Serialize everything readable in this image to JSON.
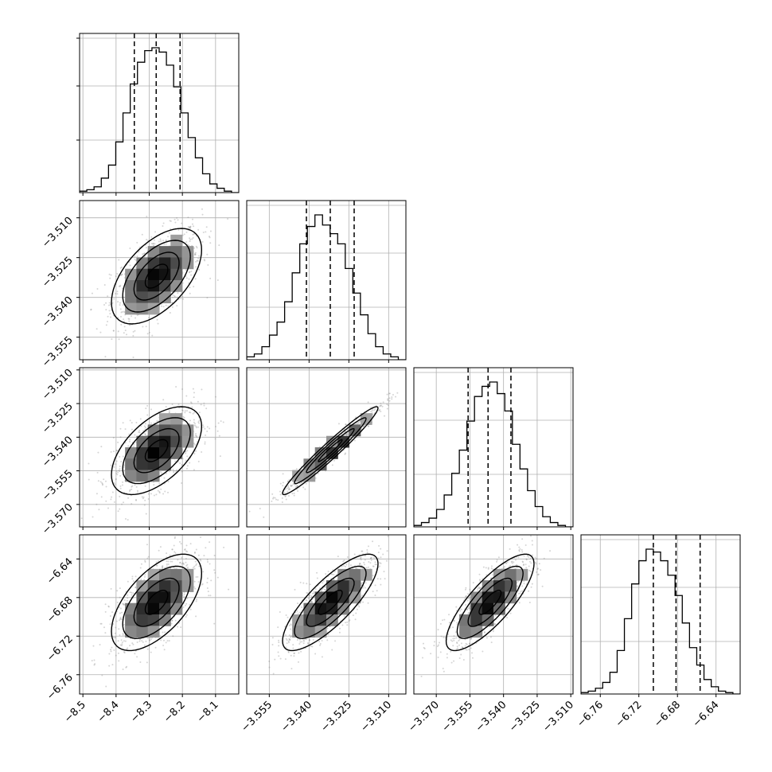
{
  "chart_data": {
    "type": "corner",
    "title": "",
    "variables": [
      {
        "ticks": [
          -8.5,
          -8.4,
          -8.3,
          -8.2,
          -8.1
        ],
        "tick_labels": [
          "−8.5",
          "−8.4",
          "−8.3",
          "−8.2",
          "−8.1"
        ],
        "range": [
          -8.51,
          -8.03
        ],
        "mean": -8.278,
        "sd": 0.068,
        "quantiles": [
          -8.345,
          -8.279,
          -8.207
        ],
        "hist": [
          1,
          2,
          4,
          10,
          19,
          35,
          55,
          75,
          90,
          98,
          100,
          97,
          88,
          73,
          55,
          38,
          24,
          13,
          6,
          3,
          1,
          0
        ]
      },
      {
        "ticks": [
          -3.555,
          -3.54,
          -3.525,
          -3.51
        ],
        "tick_labels": [
          "−3.555",
          "−3.540",
          "−3.525",
          "−3.510"
        ],
        "range": [
          -3.5635,
          -3.5035
        ],
        "mean": -3.532,
        "sd": 0.009,
        "quantiles": [
          -3.541,
          -3.532,
          -3.523
        ],
        "hist": [
          2,
          4,
          9,
          17,
          26,
          40,
          60,
          80,
          92,
          100,
          93,
          87,
          80,
          63,
          46,
          31,
          18,
          9,
          4,
          2,
          0
        ]
      },
      {
        "ticks": [
          -3.57,
          -3.555,
          -3.54,
          -3.525,
          -3.51
        ],
        "tick_labels": [
          "−3.570",
          "−3.555",
          "−3.540",
          "−3.525",
          "−3.510"
        ],
        "range": [
          -3.58,
          -3.509
        ],
        "mean": -3.546,
        "sd": 0.0098,
        "quantiles": [
          -3.5558,
          -3.5469,
          -3.5367
        ],
        "hist": [
          1,
          3,
          6,
          12,
          22,
          37,
          53,
          73,
          90,
          97,
          100,
          92,
          80,
          57,
          40,
          25,
          14,
          7,
          3,
          1,
          0
        ]
      },
      {
        "ticks": [
          -6.76,
          -6.72,
          -6.68,
          -6.64
        ],
        "tick_labels": [
          "−6.76",
          "−6.72",
          "−6.68",
          "−6.64"
        ],
        "range": [
          -6.78,
          -6.615
        ],
        "mean": -6.685,
        "sd": 0.025,
        "quantiles": [
          -6.705,
          -6.6815,
          -6.6565
        ],
        "hist": [
          1,
          2,
          4,
          8,
          15,
          30,
          52,
          76,
          92,
          100,
          98,
          92,
          82,
          68,
          49,
          32,
          20,
          10,
          5,
          2,
          1,
          0
        ]
      }
    ],
    "correlations": [
      [
        1.0,
        0.55,
        0.55,
        0.6
      ],
      [
        0.55,
        1.0,
        0.97,
        0.8
      ],
      [
        0.55,
        0.97,
        1.0,
        0.8
      ],
      [
        0.6,
        0.8,
        0.8,
        1.0
      ]
    ],
    "histogram_style": "step",
    "quantile_lines": "dashed",
    "contour_levels": [
      0.5,
      1.0,
      1.5,
      2.0
    ],
    "grid": true,
    "colors": {
      "line": "#000000",
      "grid": "#b0b0b0",
      "points": "#888888",
      "axis": "#000000"
    }
  }
}
